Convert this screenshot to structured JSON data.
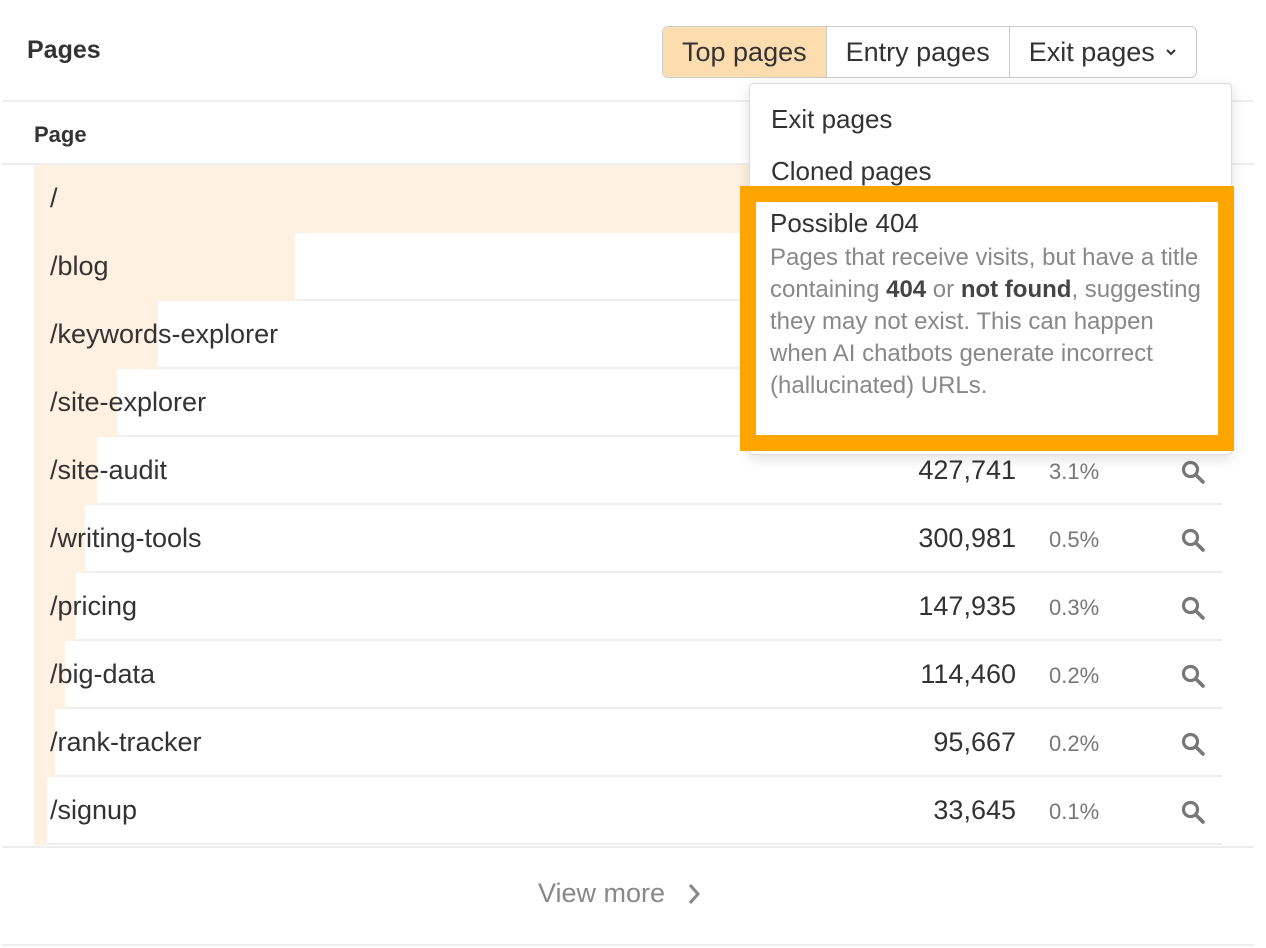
{
  "header": {
    "title": "Pages",
    "tabs": [
      {
        "label": "Top pages",
        "active": true
      },
      {
        "label": "Entry pages",
        "active": false
      },
      {
        "label": "Exit pages",
        "active": false
      }
    ]
  },
  "table": {
    "column_header": "Page",
    "rows": [
      {
        "path": "/",
        "value": "",
        "pct": "",
        "bar": 1.0
      },
      {
        "path": "/blog",
        "value": "",
        "pct": "",
        "bar": 0.22
      },
      {
        "path": "/keywords-explorer",
        "value": "",
        "pct": "",
        "bar": 0.104
      },
      {
        "path": "/site-explorer",
        "value": "",
        "pct": "",
        "bar": 0.07
      },
      {
        "path": "/site-audit",
        "value": "427,741",
        "pct": "3.1%",
        "bar": 0.053
      },
      {
        "path": "/writing-tools",
        "value": "300,981",
        "pct": "0.5%",
        "bar": 0.043
      },
      {
        "path": "/pricing",
        "value": "147,935",
        "pct": "0.3%",
        "bar": 0.035
      },
      {
        "path": "/big-data",
        "value": "114,460",
        "pct": "0.2%",
        "bar": 0.026
      },
      {
        "path": "/rank-tracker",
        "value": "95,667",
        "pct": "0.2%",
        "bar": 0.018
      },
      {
        "path": "/signup",
        "value": "33,645",
        "pct": "0.1%",
        "bar": 0.011
      }
    ]
  },
  "dropdown": {
    "items": [
      "Exit pages",
      "Cloned pages"
    ],
    "highlight": {
      "title": "Possible 404",
      "desc_1": "Pages that receive visits, but have a title containing ",
      "bold_1": "404",
      "desc_2": " or ",
      "bold_2": "not found",
      "desc_3": ", suggesting they may not exist. This can happen when AI chatbots generate incorrect (hallucinated) URLs."
    },
    "highlight_color": "#ffa500"
  },
  "footer": {
    "view_more": "View more"
  }
}
